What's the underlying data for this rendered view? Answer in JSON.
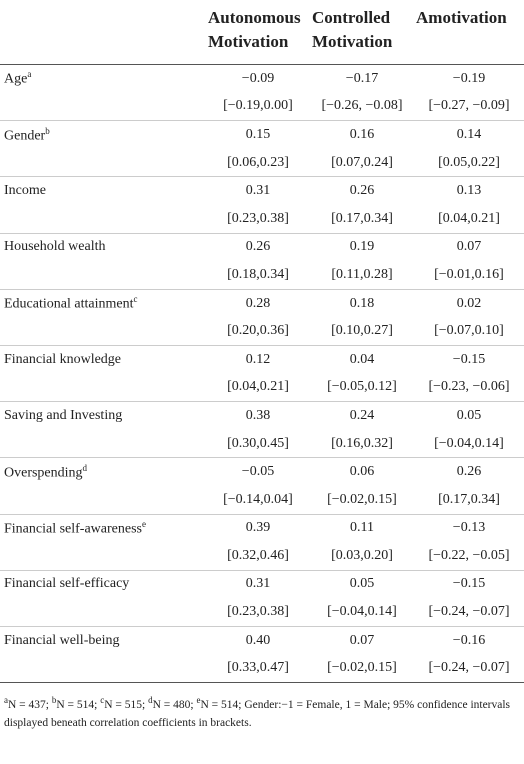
{
  "table": {
    "columns": [
      "Autonomous Motivation",
      "Controlled Motivation",
      "Amotivation"
    ],
    "rows": [
      {
        "label": "Age",
        "note": "a",
        "values": [
          "−0.09",
          "−0.17",
          "−0.19"
        ],
        "ci": [
          "[−0.19,0.00]",
          "[−0.26, −0.08]",
          "[−0.27, −0.09]"
        ]
      },
      {
        "label": "Gender",
        "note": "b",
        "values": [
          "0.15",
          "0.16",
          "0.14"
        ],
        "ci": [
          "[0.06,0.23]",
          "[0.07,0.24]",
          "[0.05,0.22]"
        ]
      },
      {
        "label": "Income",
        "values": [
          "0.31",
          "0.26",
          "0.13"
        ],
        "ci": [
          "[0.23,0.38]",
          "[0.17,0.34]",
          "[0.04,0.21]"
        ]
      },
      {
        "label": "Household wealth",
        "values": [
          "0.26",
          "0.19",
          "0.07"
        ],
        "ci": [
          "[0.18,0.34]",
          "[0.11,0.28]",
          "[−0.01,0.16]"
        ]
      },
      {
        "label": "Educational attainment",
        "note": "c",
        "values": [
          "0.28",
          "0.18",
          "0.02"
        ],
        "ci": [
          "[0.20,0.36]",
          "[0.10,0.27]",
          "[−0.07,0.10]"
        ]
      },
      {
        "label": "Financial knowledge",
        "values": [
          "0.12",
          "0.04",
          "−0.15"
        ],
        "ci": [
          "[0.04,0.21]",
          "[−0.05,0.12]",
          "[−0.23, −0.06]"
        ]
      },
      {
        "label": "Saving and Investing",
        "values": [
          "0.38",
          "0.24",
          "0.05"
        ],
        "ci": [
          "[0.30,0.45]",
          "[0.16,0.32]",
          "[−0.04,0.14]"
        ]
      },
      {
        "label": "Overspending",
        "note": "d",
        "values": [
          "−0.05",
          "0.06",
          "0.26"
        ],
        "ci": [
          "[−0.14,0.04]",
          "[−0.02,0.15]",
          "[0.17,0.34]"
        ]
      },
      {
        "label": "Financial self-awareness",
        "note": "e",
        "values": [
          "0.39",
          "0.11",
          "−0.13"
        ],
        "ci": [
          "[0.32,0.46]",
          "[0.03,0.20]",
          "[−0.22, −0.05]"
        ]
      },
      {
        "label": "Financial self-efficacy",
        "values": [
          "0.31",
          "0.05",
          "−0.15"
        ],
        "ci": [
          "[0.23,0.38]",
          "[−0.04,0.14]",
          "[−0.24, −0.07]"
        ]
      },
      {
        "label": "Financial well-being",
        "values": [
          "0.40",
          "0.07",
          "−0.16"
        ],
        "ci": [
          "[0.33,0.47]",
          "[−0.02,0.15]",
          "[−0.24, −0.07]"
        ]
      }
    ]
  },
  "footnote": {
    "items": [
      {
        "mark": "a",
        "text": "N = 437;"
      },
      {
        "mark": "b",
        "text": "N = 514;"
      },
      {
        "mark": "c",
        "text": "N = 515;"
      },
      {
        "mark": "d",
        "text": "N = 480;"
      },
      {
        "mark": "e",
        "text": "N = 514;"
      }
    ],
    "rest": "Gender:−1 = Female, 1 = Male; 95% confidence intervals displayed beneath correlation coefficients in brackets."
  }
}
